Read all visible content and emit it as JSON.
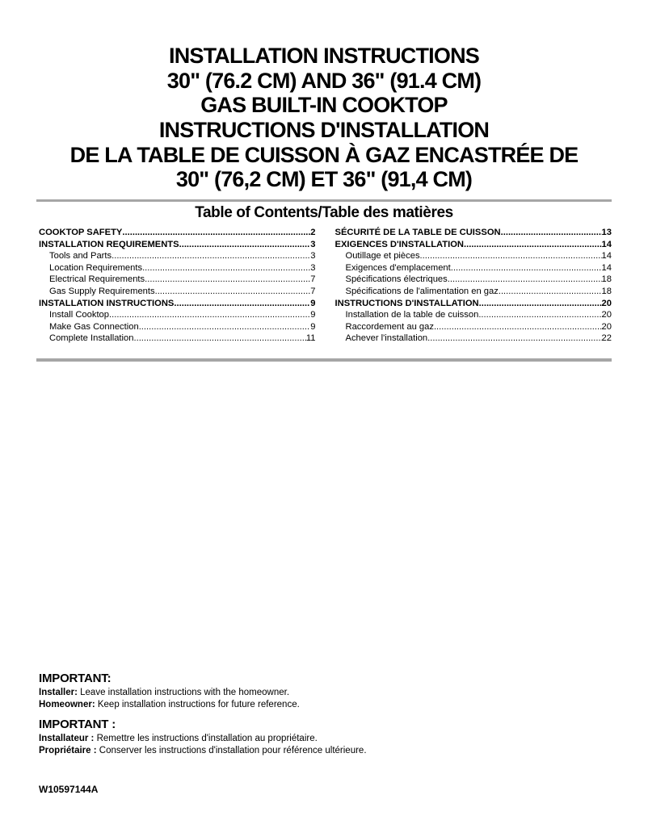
{
  "title": {
    "en_lines": [
      "INSTALLATION INSTRUCTIONS",
      "30\" (76.2 CM) AND 36\" (91.4 CM)",
      "GAS BUILT-IN COOKTOP"
    ],
    "fr_lines": [
      "INSTRUCTIONS D'INSTALLATION",
      "DE LA TABLE DE CUISSON À GAZ ENCASTRÉE DE",
      "30\" (76,2 CM) ET 36\" (91,4 CM)"
    ]
  },
  "toc": {
    "heading": "Table of Contents/Table des matières",
    "left_column": [
      {
        "label": "COOKTOP SAFETY",
        "page": "2",
        "bold": true,
        "indent": false
      },
      {
        "label": "INSTALLATION REQUIREMENTS",
        "page": "3",
        "bold": true,
        "indent": false
      },
      {
        "label": "Tools and Parts ",
        "page": "3",
        "bold": false,
        "indent": true
      },
      {
        "label": "Location Requirements",
        "page": "3",
        "bold": false,
        "indent": true
      },
      {
        "label": "Electrical Requirements ",
        "page": "7",
        "bold": false,
        "indent": true
      },
      {
        "label": "Gas Supply Requirements ",
        "page": "7",
        "bold": false,
        "indent": true
      },
      {
        "label": "INSTALLATION INSTRUCTIONS",
        "page": "9",
        "bold": true,
        "indent": false
      },
      {
        "label": "Install Cooktop ",
        "page": "9",
        "bold": false,
        "indent": true
      },
      {
        "label": "Make Gas Connection ",
        "page": "9",
        "bold": false,
        "indent": true
      },
      {
        "label": "Complete Installation ",
        "page": "11",
        "bold": false,
        "indent": true
      }
    ],
    "right_column": [
      {
        "label": "SÉCURITÉ DE LA TABLE DE CUISSON ",
        "page": "13",
        "bold": true,
        "indent": false
      },
      {
        "label": "EXIGENCES D'INSTALLATION",
        "page": "14",
        "bold": true,
        "indent": false
      },
      {
        "label": "Outillage et pièces",
        "page": "14",
        "bold": false,
        "indent": true
      },
      {
        "label": "Exigences d'emplacement",
        "page": "14",
        "bold": false,
        "indent": true
      },
      {
        "label": "Spécifications électriques ",
        "page": "18",
        "bold": false,
        "indent": true
      },
      {
        "label": "Spécifications de l'alimentation en gaz ",
        "page": "18",
        "bold": false,
        "indent": true
      },
      {
        "label": "INSTRUCTIONS D'INSTALLATION",
        "page": "20",
        "bold": true,
        "indent": false
      },
      {
        "label": "Installation de la table de cuisson",
        "page": "20",
        "bold": false,
        "indent": true
      },
      {
        "label": "Raccordement au gaz",
        "page": "20",
        "bold": false,
        "indent": true
      },
      {
        "label": "Achever l'installation ",
        "page": "22",
        "bold": false,
        "indent": true
      }
    ]
  },
  "important_en": {
    "heading": "IMPORTANT:",
    "lines": [
      {
        "lead": "Installer:",
        "text": " Leave installation instructions with the homeowner."
      },
      {
        "lead": "Homeowner:",
        "text": " Keep installation instructions for future reference."
      }
    ]
  },
  "important_fr": {
    "heading": "IMPORTANT :",
    "lines": [
      {
        "lead": "Installateur :",
        "text": " Remettre les instructions d'installation au propriétaire."
      },
      {
        "lead": "Propriétaire :",
        "text": " Conserver les instructions d'installation pour référence ultérieure."
      }
    ]
  },
  "footer": {
    "document_number": "W10597144A"
  },
  "colors": {
    "background": "#ffffff",
    "text": "#000000",
    "divider": "#a6a6a6"
  }
}
